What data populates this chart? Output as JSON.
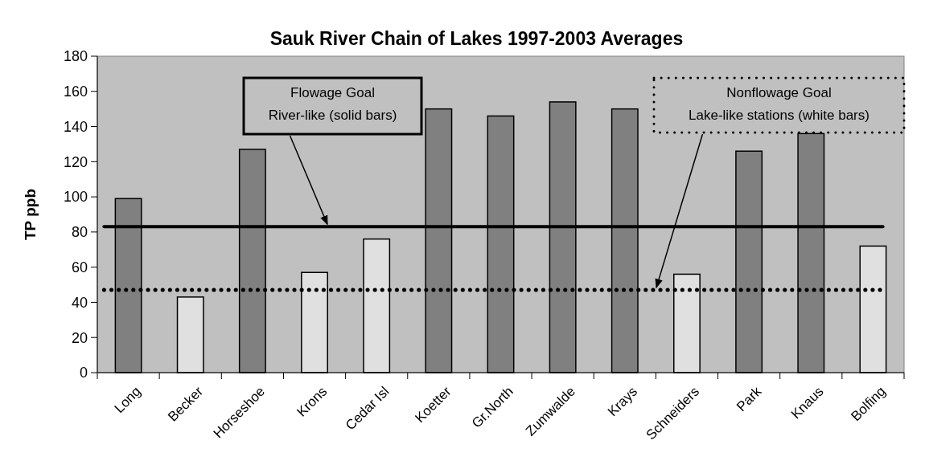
{
  "chart_data": {
    "type": "bar",
    "title": "Sauk River Chain of Lakes 1997-2003 Averages",
    "ylabel": "TP ppb",
    "categories": [
      "Long",
      "Becker",
      "Horseshoe",
      "Krons",
      "Cedar Isl",
      "Koetter",
      "Gr.North",
      "Zumwalde",
      "Krays",
      "Schneiders",
      "Park",
      "Knaus",
      "Bolfing"
    ],
    "values": [
      99,
      43,
      127,
      57,
      76,
      150,
      146,
      154,
      150,
      56,
      126,
      136,
      72
    ],
    "colors": [
      "#808080",
      "#e0e0e0",
      "#808080",
      "#e0e0e0",
      "#e0e0e0",
      "#808080",
      "#808080",
      "#808080",
      "#808080",
      "#e0e0e0",
      "#808080",
      "#808080",
      "#e0e0e0"
    ],
    "ylim": [
      0,
      180
    ],
    "yticks": [
      0,
      20,
      40,
      60,
      80,
      100,
      120,
      140,
      160,
      180
    ],
    "ref_lines": [
      {
        "axis": "y",
        "value": 83,
        "label": "Flowage Goal\nRiver-like (solid bars)",
        "color": "#000000",
        "line_style": "solid"
      },
      {
        "axis": "y",
        "value": 47,
        "label": "Nonflowage Goal\nLake-like stations (white bars)",
        "color": "#000000",
        "line_style": "dotted"
      }
    ]
  }
}
